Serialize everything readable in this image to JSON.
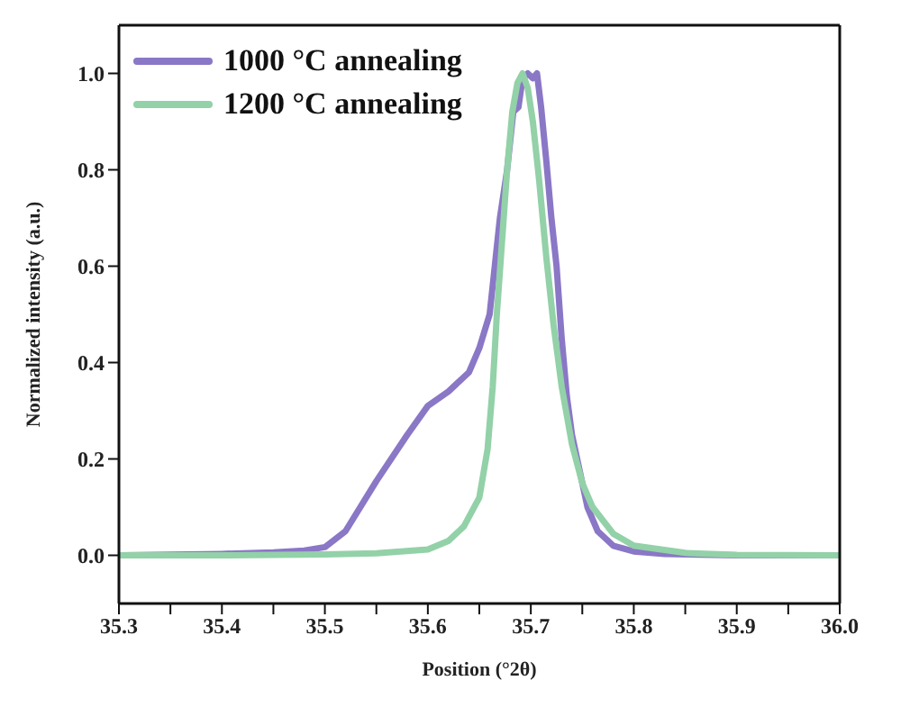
{
  "chart_data": {
    "type": "line",
    "xlabel": "Position (°2θ)",
    "ylabel": "Normalized intensity (a.u.)",
    "xlim": [
      35.3,
      36.0
    ],
    "ylim": [
      -0.1,
      1.1
    ],
    "xticks": [
      {
        "value": 35.3,
        "label": "35.3"
      },
      {
        "value": 35.35,
        "label": null
      },
      35.4,
      {
        "value": 35.45,
        "label": null
      },
      35.5,
      {
        "value": 35.55,
        "label": null
      },
      35.6,
      {
        "value": 35.65,
        "label": null
      },
      35.7,
      {
        "value": 35.75,
        "label": null
      },
      35.8,
      {
        "value": 35.85,
        "label": null
      },
      35.9,
      {
        "value": 35.95,
        "label": null
      },
      {
        "value": 36.0,
        "label": "36.0"
      }
    ],
    "yticks": [
      {
        "value": 0.0,
        "label": "0.0"
      },
      0.2,
      0.4,
      0.6,
      0.8,
      {
        "value": 1.0,
        "label": "1.0"
      }
    ],
    "legend": "top left",
    "marker": "none",
    "line_style": "solid",
    "series": [
      {
        "name": "1000 °C annealing",
        "color": "#8a77c6",
        "x": [
          35.3,
          35.4,
          35.45,
          35.48,
          35.5,
          35.52,
          35.55,
          35.58,
          35.6,
          35.62,
          35.64,
          35.65,
          35.66,
          35.665,
          35.67,
          35.677,
          35.683,
          35.688,
          35.692,
          35.697,
          35.702,
          35.706,
          35.71,
          35.715,
          35.72,
          35.725,
          35.73,
          35.735,
          35.74,
          35.745,
          35.755,
          35.765,
          35.78,
          35.8,
          35.83,
          35.9,
          36.0
        ],
        "values": [
          0.0,
          0.003,
          0.006,
          0.01,
          0.017,
          0.05,
          0.154,
          0.25,
          0.31,
          0.34,
          0.38,
          0.43,
          0.5,
          0.6,
          0.7,
          0.8,
          0.92,
          0.93,
          0.99,
          1.0,
          0.99,
          1.0,
          0.93,
          0.82,
          0.7,
          0.6,
          0.45,
          0.33,
          0.25,
          0.2,
          0.1,
          0.05,
          0.02,
          0.008,
          0.003,
          0.0,
          0.0
        ]
      },
      {
        "name": "1200 °C annealing",
        "color": "#93d1a8",
        "x": [
          35.3,
          35.4,
          35.5,
          35.55,
          35.6,
          35.62,
          35.635,
          35.65,
          35.658,
          35.663,
          35.667,
          35.672,
          35.677,
          35.682,
          35.687,
          35.692,
          35.697,
          35.702,
          35.708,
          35.715,
          35.722,
          35.73,
          35.74,
          35.75,
          35.76,
          35.78,
          35.8,
          35.85,
          35.9,
          36.0
        ],
        "values": [
          0.0,
          0.0,
          0.002,
          0.004,
          0.012,
          0.03,
          0.06,
          0.12,
          0.22,
          0.35,
          0.5,
          0.65,
          0.8,
          0.92,
          0.98,
          1.0,
          0.97,
          0.9,
          0.78,
          0.62,
          0.48,
          0.35,
          0.23,
          0.15,
          0.1,
          0.045,
          0.02,
          0.005,
          0.001,
          0.0
        ]
      }
    ]
  }
}
